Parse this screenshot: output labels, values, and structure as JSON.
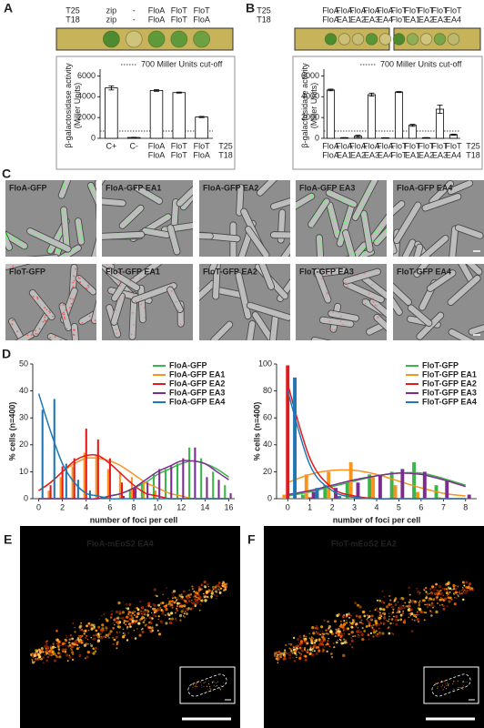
{
  "panel_labels": [
    "A",
    "B",
    "C",
    "D",
    "E",
    "F"
  ],
  "plates": [
    {
      "rows": [
        [
          "T25",
          "zip",
          "-",
          "FloA",
          "FloT",
          "FloT"
        ],
        [
          "T18",
          "zip",
          "-",
          "FloA",
          "FloT",
          "FloA"
        ]
      ],
      "spot_colors": [
        "#4e8a2e",
        "#cfc27a",
        "#5f9a3a",
        "#5f9a3a",
        "#6ca040"
      ]
    },
    {
      "rows": [
        [
          "T25",
          "FloA",
          "FloA",
          "FloA",
          "FloA",
          "FloA",
          "FloT",
          "FloT",
          "FloT",
          "FloT",
          "FloT"
        ],
        [
          "T18",
          "FloA",
          "EA1",
          "EA2",
          "EA3",
          "EA4",
          "FloT",
          "EA1",
          "EA2",
          "EA3",
          "EA4"
        ]
      ],
      "spot_colors": [
        "#4e8a2e",
        "#cdbf78",
        "#c9bd76",
        "#5a9538",
        "#cfc27a",
        "#4e8a2e",
        "#8fae55",
        "#d1c47c",
        "#7aa64a",
        "#bdb86e"
      ]
    }
  ],
  "chart_data": [
    {
      "type": "bar",
      "ylabel": [
        "β-galactosidase activity",
        "(Miller Units)"
      ],
      "categories": [
        [
          "C+"
        ],
        [
          "C-"
        ],
        [
          "FloA",
          "FloA"
        ],
        [
          "FloT",
          "FloT"
        ],
        [
          "FloT",
          "FloA"
        ]
      ],
      "row_labels": [
        "T25",
        "T18"
      ],
      "values": [
        4850,
        80,
        4600,
        4400,
        2050
      ],
      "errors": [
        200,
        20,
        80,
        50,
        60
      ],
      "color": "#ffffff",
      "ylim": [
        0,
        6300
      ],
      "yticks": [
        0,
        2000,
        4000,
        6000
      ],
      "cutoff": 700,
      "cutoff_label": "700 Miller Units cut-off"
    },
    {
      "type": "bar",
      "ylabel": [
        "β-galactosidase activity",
        "(Miller Units)"
      ],
      "categories": [
        [
          "FloA",
          "FloA"
        ],
        [
          "FloA",
          "EA1"
        ],
        [
          "FloA",
          "EA2"
        ],
        [
          "FloA",
          "EA3"
        ],
        [
          "FloA",
          "EA4"
        ],
        [
          "FloT",
          "FloT"
        ],
        [
          "FloT",
          "EA1"
        ],
        [
          "FloT",
          "EA2"
        ],
        [
          "FloT",
          "EA3"
        ],
        [
          "FloT",
          "EA4"
        ]
      ],
      "row_labels": [
        "T25",
        "T18"
      ],
      "values": [
        4650,
        60,
        200,
        4200,
        50,
        4450,
        1250,
        60,
        2800,
        350
      ],
      "errors": [
        80,
        10,
        100,
        150,
        10,
        50,
        100,
        10,
        400,
        50
      ],
      "color": "#ffffff",
      "ylim": [
        0,
        6300
      ],
      "yticks": [
        0,
        2000,
        4000,
        6000
      ],
      "cutoff": 700,
      "cutoff_label": "700 Miller Units cut-off"
    },
    {
      "type": "grouped_bar",
      "xlabel": "number of foci per cell",
      "ylabel": "% cells (n=400)",
      "x": [
        0,
        1,
        2,
        3,
        4,
        5,
        6,
        7,
        8,
        9,
        10,
        11,
        12,
        13,
        14,
        15,
        16
      ],
      "xlim": [
        -0.5,
        16.5
      ],
      "xticks": [
        0,
        2,
        4,
        6,
        8,
        10,
        12,
        14,
        16
      ],
      "ylim": [
        0,
        50
      ],
      "yticks": [
        0,
        10,
        20,
        30,
        40,
        50
      ],
      "series": [
        {
          "name": "FloA-GFP",
          "color": "#3cb44b",
          "values": [
            null,
            null,
            null,
            null,
            null,
            null,
            null,
            null,
            3,
            6,
            9,
            11,
            13,
            19,
            15,
            10,
            5
          ],
          "fit": [
            0,
            0,
            0,
            0,
            0,
            0,
            1,
            2,
            4,
            6,
            9,
            11,
            13,
            14,
            13,
            11,
            8
          ]
        },
        {
          "name": "FloA-GFP EA1",
          "color": "#f7941d",
          "values": [
            null,
            3,
            8,
            12,
            17,
            16,
            11,
            10,
            8,
            6,
            3,
            null,
            null,
            null,
            null,
            null,
            null
          ],
          "fit": [
            3,
            6,
            10,
            13,
            15,
            15,
            14,
            12,
            9,
            6,
            4,
            2,
            1,
            0,
            0,
            0,
            0
          ]
        },
        {
          "name": "FloA-GFP EA2",
          "color": "#e31a1c",
          "values": [
            null,
            5,
            12,
            15,
            26,
            22,
            15,
            6,
            4,
            null,
            null,
            null,
            null,
            null,
            null,
            null,
            null
          ],
          "fit": [
            3,
            6,
            10,
            14,
            16,
            16,
            13,
            9,
            5,
            2,
            1,
            0,
            0,
            0,
            0,
            0,
            0
          ]
        },
        {
          "name": "FloA-GFP EA3",
          "color": "#7b2d8e",
          "values": [
            null,
            null,
            null,
            null,
            null,
            null,
            null,
            1,
            4,
            6,
            11,
            12,
            15,
            19,
            8,
            7,
            2
          ],
          "fit": [
            0,
            0,
            0,
            0,
            0,
            0,
            1,
            2,
            4,
            7,
            10,
            12,
            14,
            14,
            13,
            10,
            7
          ]
        },
        {
          "name": "FloA-GFP EA4",
          "color": "#1f78b4",
          "values": [
            33,
            37,
            13,
            7,
            3,
            null,
            null,
            null,
            null,
            null,
            null,
            null,
            null,
            null,
            null,
            null,
            null
          ],
          "fit": [
            39,
            25,
            13,
            6,
            2,
            1,
            0,
            0,
            0,
            0,
            0,
            0,
            0,
            0,
            0,
            0,
            0
          ]
        }
      ]
    },
    {
      "type": "grouped_bar",
      "xlabel": "number of foci per cell",
      "ylabel": "% cells (n=400)",
      "x": [
        0,
        1,
        2,
        3,
        4,
        5,
        6,
        7,
        8
      ],
      "xlim": [
        -0.5,
        8.5
      ],
      "xticks": [
        0,
        1,
        2,
        3,
        4,
        5,
        6,
        7,
        8
      ],
      "ylim": [
        0,
        100
      ],
      "yticks": [
        0,
        20,
        40,
        60,
        80,
        100
      ],
      "series": [
        {
          "name": "FloT-GFP",
          "color": "#3cb44b",
          "values": [
            null,
            3,
            10,
            12,
            18,
            20,
            27,
            10,
            null
          ],
          "fit": [
            2,
            5,
            9,
            13,
            17,
            19,
            19,
            15,
            10
          ]
        },
        {
          "name": "FloT-GFP EA1",
          "color": "#f7941d",
          "values": [
            3,
            18,
            20,
            27,
            16,
            10,
            5,
            1,
            null
          ],
          "fit": [
            12,
            18,
            21,
            21,
            18,
            13,
            8,
            4,
            2
          ]
        },
        {
          "name": "FloT-GFP EA2",
          "color": "#e31a1c",
          "values": [
            99,
            1,
            null,
            null,
            null,
            null,
            null,
            null,
            null
          ],
          "fit": [
            85,
            30,
            8,
            2,
            0,
            0,
            0,
            0,
            0
          ]
        },
        {
          "name": "FloT-GFP EA3",
          "color": "#7b2d8e",
          "values": [
            null,
            5,
            8,
            12,
            17,
            22,
            20,
            13,
            3
          ],
          "fit": [
            3,
            6,
            10,
            14,
            17,
            19,
            18,
            14,
            9
          ]
        },
        {
          "name": "FloT-GFP EA4",
          "color": "#1f78b4",
          "values": [
            90,
            8,
            2,
            null,
            null,
            null,
            null,
            null,
            null
          ],
          "fit": [
            80,
            25,
            6,
            1,
            0,
            0,
            0,
            0,
            0
          ]
        }
      ]
    }
  ],
  "microscopy": {
    "labels": [
      "FloA-GFP",
      "FloA-GFP EA1",
      "FloA-GFP EA2",
      "FloA-GFP EA3",
      "FloA-GFP EA4",
      "FloT-GFP",
      "FloT-GFP EA1",
      "FloT-GFP EA2",
      "FloT-GFP EA3",
      "FloT-GFP EA4"
    ]
  },
  "super_resolution": [
    {
      "label": "FloA-mEoS2 EA4"
    },
    {
      "label": "FloT-mEoS2 EA2"
    }
  ]
}
